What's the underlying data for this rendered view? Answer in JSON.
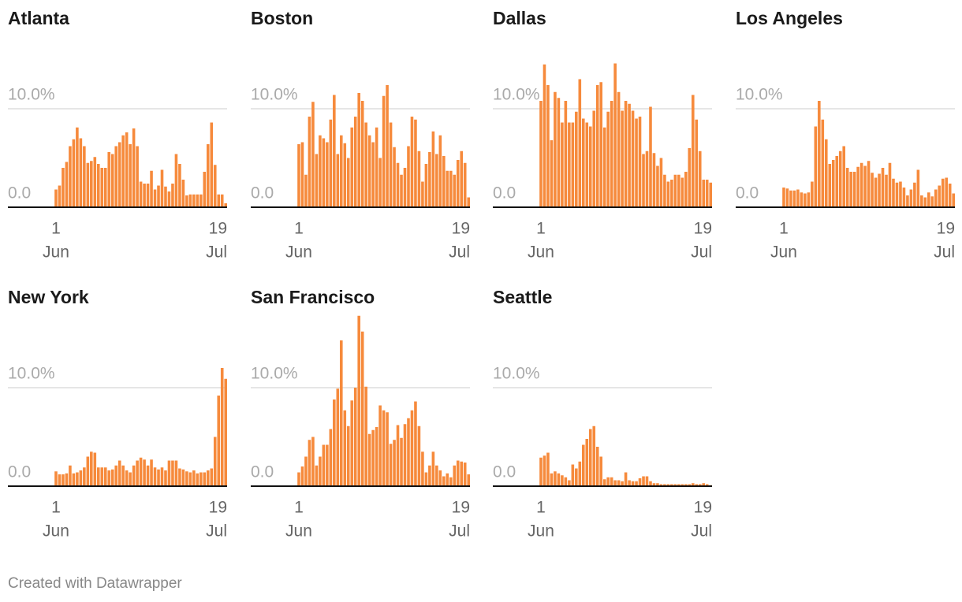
{
  "chart_data": [
    {
      "type": "bar",
      "title": "Atlanta",
      "color": "#f68a3c",
      "xlim": [
        -13.6,
        48.4
      ],
      "xticks": [
        {
          "value": 0,
          "label": "1",
          "month": "Jun"
        },
        {
          "value": 48,
          "label": "19",
          "month": "Jul"
        }
      ],
      "ylim": [
        0,
        17.5
      ],
      "yticks": [
        {
          "value": 0,
          "label": "0.0"
        },
        {
          "value": 10,
          "label": "10.0%"
        }
      ],
      "grid": true,
      "values": [
        1.8,
        2.2,
        4,
        4.6,
        6.2,
        6.9,
        8.1,
        7,
        6.2,
        4.5,
        4.7,
        5.1,
        4.4,
        4,
        4,
        5.6,
        5.4,
        6.2,
        6.6,
        7.3,
        7.6,
        6.4,
        8,
        6.2,
        2.6,
        2.4,
        2.4,
        3.7,
        1.8,
        2.2,
        3.8,
        2.1,
        1.6,
        2.4,
        5.4,
        4.4,
        2.8,
        1.2,
        1.3,
        1.3,
        1.3,
        1.3,
        3.6,
        6.4,
        8.6,
        4.3,
        1.3,
        1.3,
        0.4
      ]
    },
    {
      "type": "bar",
      "title": "Boston",
      "color": "#f68a3c",
      "xlim": [
        -13.6,
        48.4
      ],
      "xticks": [
        {
          "value": 0,
          "label": "1",
          "month": "Jun"
        },
        {
          "value": 48,
          "label": "19",
          "month": "Jul"
        }
      ],
      "ylim": [
        0,
        17.5
      ],
      "yticks": [
        {
          "value": 0,
          "label": "0.0"
        },
        {
          "value": 10,
          "label": "10.0%"
        }
      ],
      "grid": true,
      "values": [
        6.4,
        6.6,
        3.3,
        9.2,
        10.7,
        5.4,
        7.3,
        7,
        6.6,
        8.9,
        11.4,
        5.4,
        7.3,
        6.5,
        5,
        8.1,
        9.2,
        11.6,
        10.8,
        8.6,
        7.3,
        6.6,
        8.1,
        5,
        11.3,
        12.4,
        8.6,
        6.1,
        4.5,
        3.3,
        4,
        6.2,
        9.2,
        8.9,
        5.7,
        2.6,
        4.4,
        5.6,
        7.7,
        5.4,
        7.3,
        5.2,
        3.7,
        3.7,
        3.3,
        4.8,
        5.7,
        4.5,
        1
      ]
    },
    {
      "type": "bar",
      "title": "Dallas",
      "color": "#f68a3c",
      "xlim": [
        -13.6,
        48.4
      ],
      "xticks": [
        {
          "value": 0,
          "label": "1",
          "month": "Jun"
        },
        {
          "value": 48,
          "label": "19",
          "month": "Jul"
        }
      ],
      "ylim": [
        0,
        17.5
      ],
      "yticks": [
        {
          "value": 0,
          "label": "0.0"
        },
        {
          "value": 10,
          "label": "10.0%"
        }
      ],
      "grid": true,
      "values": [
        10.8,
        14.5,
        12.4,
        6.8,
        11.7,
        11.1,
        8.6,
        10.8,
        8.6,
        8.6,
        9.7,
        13,
        9,
        8.6,
        8.2,
        9.8,
        12.4,
        12.7,
        8.1,
        9.7,
        10.8,
        14.6,
        11.7,
        9.8,
        10.8,
        10.5,
        9.8,
        9,
        9.2,
        5.4,
        5.7,
        10.2,
        5.5,
        4.2,
        5,
        3.3,
        2.6,
        2.8,
        3.3,
        3.3,
        3,
        3.6,
        6,
        11.4,
        8.9,
        5.7,
        2.8,
        2.8,
        2.5
      ]
    },
    {
      "type": "bar",
      "title": "Los Angeles",
      "color": "#f68a3c",
      "xlim": [
        -13.6,
        48.4
      ],
      "xticks": [
        {
          "value": 0,
          "label": "1",
          "month": "Jun"
        },
        {
          "value": 48,
          "label": "19",
          "month": "Jul"
        }
      ],
      "ylim": [
        0,
        17.5
      ],
      "yticks": [
        {
          "value": 0,
          "label": "0.0"
        },
        {
          "value": 10,
          "label": "10.0%"
        }
      ],
      "grid": true,
      "values": [
        2,
        1.9,
        1.7,
        1.7,
        1.8,
        1.5,
        1.4,
        1.5,
        2.6,
        8.2,
        10.8,
        8.9,
        6.9,
        4.4,
        4.8,
        5.2,
        5.7,
        6.2,
        4,
        3.6,
        3.6,
        4.1,
        4.5,
        4.2,
        4.7,
        3.5,
        3,
        3.4,
        4,
        3.3,
        4.5,
        2.9,
        2.5,
        2.6,
        2,
        1.2,
        1.8,
        2.5,
        3.8,
        1.2,
        1,
        1.5,
        1.1,
        1.8,
        2.2,
        2.9,
        3,
        2.4,
        1.4
      ]
    },
    {
      "type": "bar",
      "title": "New York",
      "color": "#f68a3c",
      "xlim": [
        -13.6,
        48.4
      ],
      "xticks": [
        {
          "value": 0,
          "label": "1",
          "month": "Jun"
        },
        {
          "value": 48,
          "label": "19",
          "month": "Jul"
        }
      ],
      "ylim": [
        0,
        17.5
      ],
      "yticks": [
        {
          "value": 0,
          "label": "0.0"
        },
        {
          "value": 10,
          "label": "10.0%"
        }
      ],
      "grid": true,
      "values": [
        1.5,
        1.2,
        1.2,
        1.3,
        2.1,
        1.3,
        1.4,
        1.6,
        1.9,
        3,
        3.5,
        3.4,
        1.9,
        1.9,
        1.9,
        1.6,
        1.7,
        2.1,
        2.6,
        2.1,
        1.6,
        1.4,
        2.1,
        2.6,
        2.9,
        2.7,
        2.1,
        2.7,
        1.9,
        1.7,
        1.9,
        1.6,
        2.6,
        2.6,
        2.6,
        1.8,
        1.7,
        1.5,
        1.4,
        1.6,
        1.3,
        1.4,
        1.4,
        1.6,
        1.8,
        5,
        9.2,
        12,
        10.9
      ]
    },
    {
      "type": "bar",
      "title": "San Francisco",
      "color": "#f68a3c",
      "xlim": [
        -13.6,
        48.4
      ],
      "xticks": [
        {
          "value": 0,
          "label": "1",
          "month": "Jun"
        },
        {
          "value": 48,
          "label": "19",
          "month": "Jul"
        }
      ],
      "ylim": [
        0,
        17.5
      ],
      "yticks": [
        {
          "value": 0,
          "label": "0.0"
        },
        {
          "value": 10,
          "label": "10.0%"
        }
      ],
      "grid": true,
      "values": [
        1.4,
        2,
        3,
        4.7,
        5,
        2.1,
        3,
        4.2,
        4.2,
        5.8,
        8.8,
        9.9,
        14.8,
        7.7,
        6.1,
        8.7,
        10,
        17.3,
        15.7,
        10.1,
        5.3,
        5.7,
        6,
        8.2,
        7.7,
        7.5,
        4.3,
        4.7,
        6.2,
        4.9,
        6.3,
        6.9,
        7.7,
        8.6,
        6.1,
        3.5,
        1.4,
        2.1,
        3.5,
        2.1,
        1.6,
        1,
        1.3,
        0.9,
        2.1,
        2.6,
        2.5,
        2.4,
        1.2
      ]
    },
    {
      "type": "bar",
      "title": "Seattle",
      "color": "#f68a3c",
      "xlim": [
        -13.6,
        48.4
      ],
      "xticks": [
        {
          "value": 0,
          "label": "1",
          "month": "Jun"
        },
        {
          "value": 48,
          "label": "19",
          "month": "Jul"
        }
      ],
      "ylim": [
        0,
        17.5
      ],
      "yticks": [
        {
          "value": 0,
          "label": "0.0"
        },
        {
          "value": 10,
          "label": "10.0%"
        }
      ],
      "grid": true,
      "values": [
        2.9,
        3.1,
        3.4,
        1.3,
        1.5,
        1.3,
        1.1,
        0.9,
        0.6,
        2.2,
        1.8,
        2.5,
        4.2,
        4.8,
        5.8,
        6.1,
        4,
        3,
        0.7,
        0.9,
        0.9,
        0.6,
        0.6,
        0.5,
        1.4,
        0.6,
        0.5,
        0.5,
        0.8,
        1,
        1,
        0.5,
        0.3,
        0.3,
        0.2,
        0.2,
        0.2,
        0.2,
        0.2,
        0.2,
        0.2,
        0.2,
        0.2,
        0.3,
        0.2,
        0.2,
        0.3,
        0.2,
        0.1
      ]
    }
  ],
  "credit": "Created with Datawrapper"
}
